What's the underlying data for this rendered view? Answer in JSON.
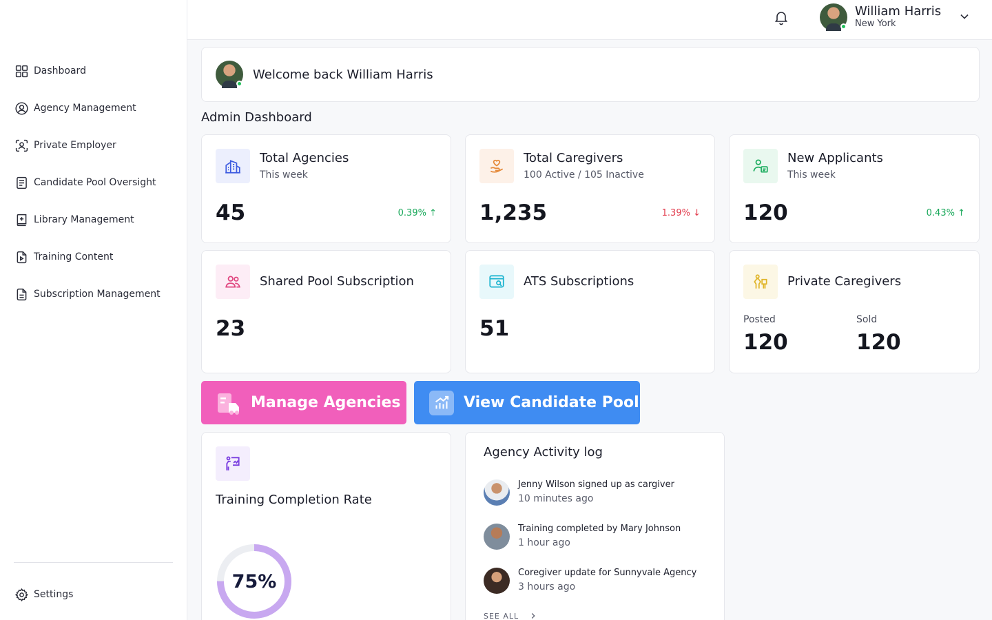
{
  "user": {
    "name": "William Harris",
    "location": "New York"
  },
  "sidebar": {
    "items": [
      {
        "label": "Dashboard",
        "icon": "grid-icon"
      },
      {
        "label": "Agency Management",
        "icon": "user-circle-icon"
      },
      {
        "label": "Private Employer",
        "icon": "user-scan-icon"
      },
      {
        "label": "Candidate Pool Oversight",
        "icon": "list-doc-icon"
      },
      {
        "label": "Library Management",
        "icon": "book-icon"
      },
      {
        "label": "Training Content",
        "icon": "file-play-icon"
      },
      {
        "label": "Subscription Management",
        "icon": "file-text-icon"
      }
    ],
    "settings_label": "Settings"
  },
  "welcome": {
    "text": "Welcome back William Harris"
  },
  "dashboard_title": "Admin Dashboard",
  "cards": {
    "total_agencies": {
      "title": "Total Agencies",
      "subtitle": "This week",
      "value": "45",
      "change": "0.39%",
      "trend": "up"
    },
    "total_caregivers": {
      "title": "Total Caregivers",
      "subtitle": "100 Active / 105 Inactive",
      "value": "1,235",
      "change": "1.39%",
      "trend": "down"
    },
    "new_applicants": {
      "title": "New Applicants",
      "subtitle": "This week",
      "value": "120",
      "change": "0.43%",
      "trend": "up"
    },
    "shared_pool": {
      "title": "Shared Pool Subscription",
      "value": "23"
    },
    "ats": {
      "title": "ATS Subscriptions",
      "value": "51"
    },
    "private_caregivers": {
      "title": "Private Caregivers",
      "posted_label": "Posted",
      "posted_value": "120",
      "sold_label": "Sold",
      "sold_value": "120"
    }
  },
  "actions": {
    "manage_agencies": "Manage Agencies",
    "view_candidate_pool": "View Candidate Pool"
  },
  "training": {
    "title": "Training Completion Rate",
    "percent_label": "75%",
    "percent": 0.75
  },
  "activity": {
    "title": "Agency Activity log",
    "items": [
      {
        "text": "Jenny Wilson  signed up as cargiver",
        "time": "10 minutes ago"
      },
      {
        "text": "Training completed by Mary Johnson",
        "time": "1 hour ago"
      },
      {
        "text": "Coregiver update for Sunnyvale Agency",
        "time": "3 hours ago"
      }
    ],
    "see_all": "SEE ALL"
  },
  "colors": {
    "pink": "#f15fbb",
    "blue": "#3f8cf2",
    "green": "#19a85a",
    "red": "#e23b4c",
    "ring": "#c8a8f0"
  }
}
